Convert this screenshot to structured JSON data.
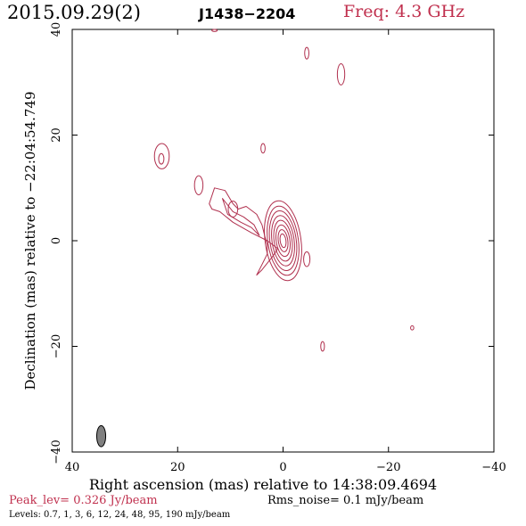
{
  "header": {
    "date": "2015.09.29(2)",
    "source": "J1438−2204",
    "frequency": "Freq: 4.3 GHz"
  },
  "colors": {
    "contour": "#b0304e",
    "axes": "#000000",
    "beam_fill": "#808080"
  },
  "chart_data": {
    "type": "contour",
    "xlabel": "Right ascension (mas) relative to 14:38:09.4694",
    "ylabel": "Declination (mas) relative to −22:04:54.749",
    "xlim": [
      40,
      -40
    ],
    "ylim": [
      -40,
      40
    ],
    "x_ticks": [
      40,
      20,
      0,
      -20,
      -40
    ],
    "x_tick_labels": [
      "40",
      "20",
      "0",
      "−20",
      "−40"
    ],
    "y_ticks": [
      -40,
      -20,
      0,
      20,
      40
    ],
    "y_tick_labels": [
      "−40",
      "−20",
      "0",
      "20",
      "40"
    ],
    "peak_level": "Peak_lev=  0.326 Jy/beam",
    "rms_noise": "Rms_noise=  0.1 mJy/beam",
    "levels_text": "Levels: 0.7,   1,   3,   6,  12,  24,  48,  95, 190 mJy/beam",
    "levels_mJy": [
      0.7,
      1,
      3,
      6,
      12,
      24,
      48,
      95,
      190
    ],
    "core": {
      "x": 0,
      "y": 0
    },
    "core_contours": [
      {
        "rx": 3.4,
        "ry": 7.6
      },
      {
        "rx": 2.9,
        "ry": 6.6
      },
      {
        "rx": 2.5,
        "ry": 5.7
      },
      {
        "rx": 2.1,
        "ry": 4.8
      },
      {
        "rx": 1.7,
        "ry": 3.9
      },
      {
        "rx": 1.3,
        "ry": 3.0
      },
      {
        "rx": 0.9,
        "ry": 2.1
      },
      {
        "rx": 0.55,
        "ry": 1.3
      }
    ],
    "jet_outline": [
      [
        13.0,
        10.0
      ],
      [
        11.0,
        9.5
      ],
      [
        9.5,
        7.0
      ],
      [
        8.5,
        6.0
      ],
      [
        7.0,
        6.5
      ],
      [
        5.0,
        5.0
      ],
      [
        4.0,
        3.0
      ],
      [
        3.5,
        1.0
      ],
      [
        3.0,
        -0.8
      ],
      [
        3.0,
        -2.5
      ],
      [
        4.0,
        -4.5
      ],
      [
        5.0,
        -6.5
      ],
      [
        4.0,
        -5.5
      ],
      [
        2.0,
        -3.0
      ],
      [
        1.0,
        -1.5
      ],
      [
        3.0,
        0.0
      ],
      [
        6.0,
        1.5
      ],
      [
        9.5,
        3.5
      ],
      [
        12.0,
        5.5
      ],
      [
        13.5,
        6.0
      ],
      [
        14.0,
        7.0
      ],
      [
        13.0,
        10.0
      ]
    ],
    "jet_outline_2": [
      [
        11.5,
        8.0
      ],
      [
        10.5,
        5.0
      ],
      [
        8.0,
        3.5
      ],
      [
        6.0,
        2.5
      ],
      [
        4.5,
        1.0
      ],
      [
        5.5,
        3.0
      ],
      [
        7.5,
        4.5
      ],
      [
        9.5,
        5.5
      ],
      [
        11.5,
        8.0
      ]
    ],
    "components": [
      {
        "x": 23.0,
        "y": 16.0,
        "rx": 1.4,
        "ry": 2.4
      },
      {
        "x": 23.1,
        "y": 15.5,
        "rx": 0.5,
        "ry": 1.0
      },
      {
        "x": 16.0,
        "y": 10.5,
        "rx": 0.8,
        "ry": 1.8
      },
      {
        "x": 9.5,
        "y": 6.0,
        "rx": 0.9,
        "ry": 1.5
      },
      {
        "x": 3.8,
        "y": 17.5,
        "rx": 0.4,
        "ry": 0.9
      },
      {
        "x": -4.5,
        "y": 35.5,
        "rx": 0.4,
        "ry": 1.1
      },
      {
        "x": -11.0,
        "y": 31.5,
        "rx": 0.7,
        "ry": 2.0
      },
      {
        "x": -4.5,
        "y": -3.5,
        "rx": 0.6,
        "ry": 1.4
      },
      {
        "x": -7.5,
        "y": -20.0,
        "rx": 0.35,
        "ry": 0.9
      },
      {
        "x": -24.5,
        "y": -16.5,
        "rx": 0.3,
        "ry": 0.4
      },
      {
        "x": 13.0,
        "y": 39.8,
        "rx": 0.5,
        "ry": 0.2
      }
    ],
    "beam": {
      "x": 34.5,
      "y": -37.0,
      "major": 4.0,
      "minor": 1.7,
      "pa_deg": 0
    }
  }
}
